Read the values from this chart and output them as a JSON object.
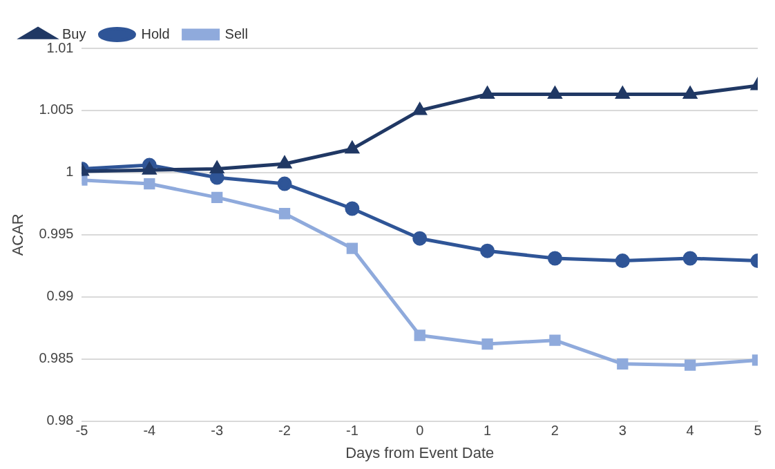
{
  "chart_data": {
    "type": "line",
    "xlabel": "Days from Event Date",
    "ylabel": "ACAR",
    "x": [
      -5,
      -4,
      -3,
      -2,
      -1,
      0,
      1,
      2,
      3,
      4,
      5
    ],
    "series": [
      {
        "name": "Buy",
        "color": "#203864",
        "marker": "triangle",
        "values": [
          1.0001,
          1.0002,
          1.0003,
          1.0007,
          1.0019,
          1.005,
          1.0063,
          1.0063,
          1.0063,
          1.0063,
          1.007
        ]
      },
      {
        "name": "Hold",
        "color": "#2f5597",
        "marker": "circle",
        "values": [
          1.0003,
          1.0006,
          0.9996,
          0.9991,
          0.9971,
          0.9947,
          0.9937,
          0.9931,
          0.9929,
          0.9931,
          0.9929
        ]
      },
      {
        "name": "Sell",
        "color": "#8faadc",
        "marker": "square",
        "values": [
          0.9994,
          0.9991,
          0.998,
          0.9967,
          0.9939,
          0.9869,
          0.9862,
          0.9865,
          0.9846,
          0.9845,
          0.9849
        ]
      }
    ],
    "xlim": [
      -5,
      5
    ],
    "xticks": [
      -5,
      -4,
      -3,
      -2,
      -1,
      0,
      1,
      2,
      3,
      4,
      5
    ],
    "ylim": [
      0.98,
      1.01
    ],
    "yticks": [
      0.98,
      0.985,
      0.99,
      0.995,
      1,
      1.005,
      1.01
    ],
    "grid": "y",
    "legend": "top left",
    "line_style": "solid"
  }
}
